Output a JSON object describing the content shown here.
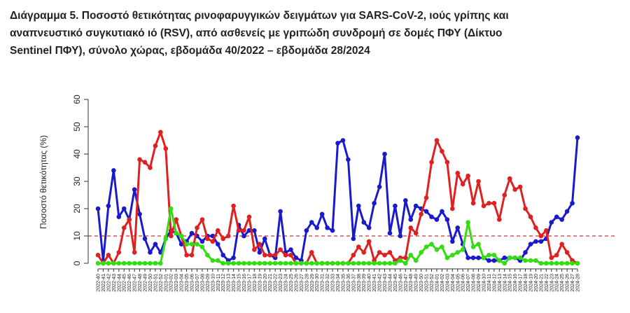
{
  "chart_data": {
    "type": "line",
    "title": [
      "Διάγραμμα 5. Ποσοστό θετικότητας ρινοφαρυγγικών δειγμάτων για SARS-CoV-2, ιούς γρίπης και",
      "αναπνευστικό συγκυτιακό ιό (RSV), από ασθενείς με γριπώδη συνδρομή σε δομές ΠΦΥ (Δίκτυο",
      "Sentinel ΠΦΥ), σύνολο χώρας, εβδομάδα 40/2022 – εβδομάδα 28/2024"
    ],
    "y_label": "Ποσοστό θετικότητας (%)",
    "categories": [
      "2022-40",
      "2022-41",
      "2022-42",
      "2022-43",
      "2022-44",
      "2022-45",
      "2022-46",
      "2022-47",
      "2022-48",
      "2022-49",
      "2022-50",
      "2022-51",
      "2022-52",
      "2023-01",
      "2023-02",
      "2023-03",
      "2023-04",
      "2023-05",
      "2023-06",
      "2023-07",
      "2023-08",
      "2023-09",
      "2023-10",
      "2023-11",
      "2023-12",
      "2023-13",
      "2023-14",
      "2023-15",
      "2023-16",
      "2023-17",
      "2023-18",
      "2023-19",
      "2023-20",
      "2023-21",
      "2023-22",
      "2023-23",
      "2023-24",
      "2023-25",
      "2023-26",
      "2023-27",
      "2023-28",
      "2023-29",
      "2023-30",
      "2023-31",
      "2023-32",
      "2023-33",
      "2023-34",
      "2023-35",
      "2023-36",
      "2023-37",
      "2023-38",
      "2023-39",
      "2023-40",
      "2023-41",
      "2023-42",
      "2023-43",
      "2023-44",
      "2023-45",
      "2023-46",
      "2023-47",
      "2023-48",
      "2023-49",
      "2023-50",
      "2023-51",
      "2023-52",
      "2024-01",
      "2024-02",
      "2024-03",
      "2024-04",
      "2024-05",
      "2024-06",
      "2024-07",
      "2024-08",
      "2024-09",
      "2024-10",
      "2024-11",
      "2024-12",
      "2024-13",
      "2024-14",
      "2024-15",
      "2024-16",
      "2024-17",
      "2024-18",
      "2024-19",
      "2024-20",
      "2024-21",
      "2024-22",
      "2024-23",
      "2024-24",
      "2024-25",
      "2024-26",
      "2024-27",
      "2024-28"
    ],
    "series": [
      {
        "color": "#1a1acc",
        "values": [
          20,
          1,
          21,
          34,
          17,
          20,
          16,
          27,
          18,
          9,
          4,
          7,
          4,
          9,
          12,
          11,
          7,
          8,
          11,
          10,
          8,
          10,
          10,
          7,
          3,
          1,
          2,
          14,
          10,
          12,
          12,
          4,
          9,
          3,
          2,
          19,
          4,
          5,
          2,
          1,
          12,
          15,
          13,
          18,
          13,
          12,
          44,
          45,
          38,
          9,
          21,
          15,
          13,
          22,
          28,
          40,
          11,
          21,
          10,
          23,
          16,
          21,
          20,
          19,
          17,
          16,
          19,
          16,
          8,
          13,
          7,
          2,
          2,
          2,
          2,
          1,
          1,
          1,
          2,
          2,
          2,
          1,
          4,
          7,
          8,
          8,
          9,
          15,
          17,
          16,
          19,
          22,
          46
        ]
      },
      {
        "color": "#e02020",
        "values": [
          3,
          0,
          3,
          0,
          4,
          13,
          16,
          4,
          38,
          37,
          35,
          43,
          48,
          42,
          10,
          16,
          10,
          3,
          3,
          13,
          16,
          9,
          8,
          12,
          9,
          10,
          21,
          12,
          12,
          17,
          5,
          7,
          3,
          3,
          3,
          5,
          3,
          3,
          0,
          0,
          0,
          4,
          0,
          0,
          0,
          0,
          0,
          0,
          0,
          3,
          6,
          4,
          8,
          1,
          4,
          3,
          4,
          1,
          2,
          2,
          13,
          11,
          18,
          24,
          37,
          45,
          41,
          37,
          20,
          33,
          29,
          32,
          22,
          30,
          21,
          22,
          22,
          16,
          25,
          31,
          27,
          28,
          20,
          17,
          13,
          10,
          12,
          2,
          3,
          7,
          4,
          1,
          0
        ]
      },
      {
        "color": "#33dd11",
        "values": [
          0,
          0,
          0,
          0,
          0,
          0,
          0,
          0,
          0,
          0,
          0,
          0,
          0,
          9,
          20,
          11,
          10,
          7,
          7,
          7,
          6,
          3,
          1,
          1,
          0,
          0,
          0,
          0,
          0,
          0,
          0,
          0,
          0,
          0,
          0,
          0,
          0,
          0,
          0,
          0,
          0,
          0,
          0,
          0,
          0,
          0,
          0,
          0,
          0,
          0,
          0,
          0,
          0,
          0,
          0,
          0,
          0,
          0,
          1,
          0,
          3,
          1,
          4,
          6,
          7,
          5,
          6,
          2,
          3,
          4,
          5,
          15,
          6,
          7,
          2,
          3,
          3,
          1,
          0,
          2,
          2,
          2,
          1,
          1,
          1,
          0,
          0,
          0,
          0,
          0,
          0,
          0,
          0
        ]
      }
    ],
    "threshold": 10,
    "threshold_color": "#cc3333",
    "ylim": [
      0,
      60
    ],
    "yticks": [
      0,
      10,
      20,
      30,
      40,
      50,
      60
    ]
  }
}
